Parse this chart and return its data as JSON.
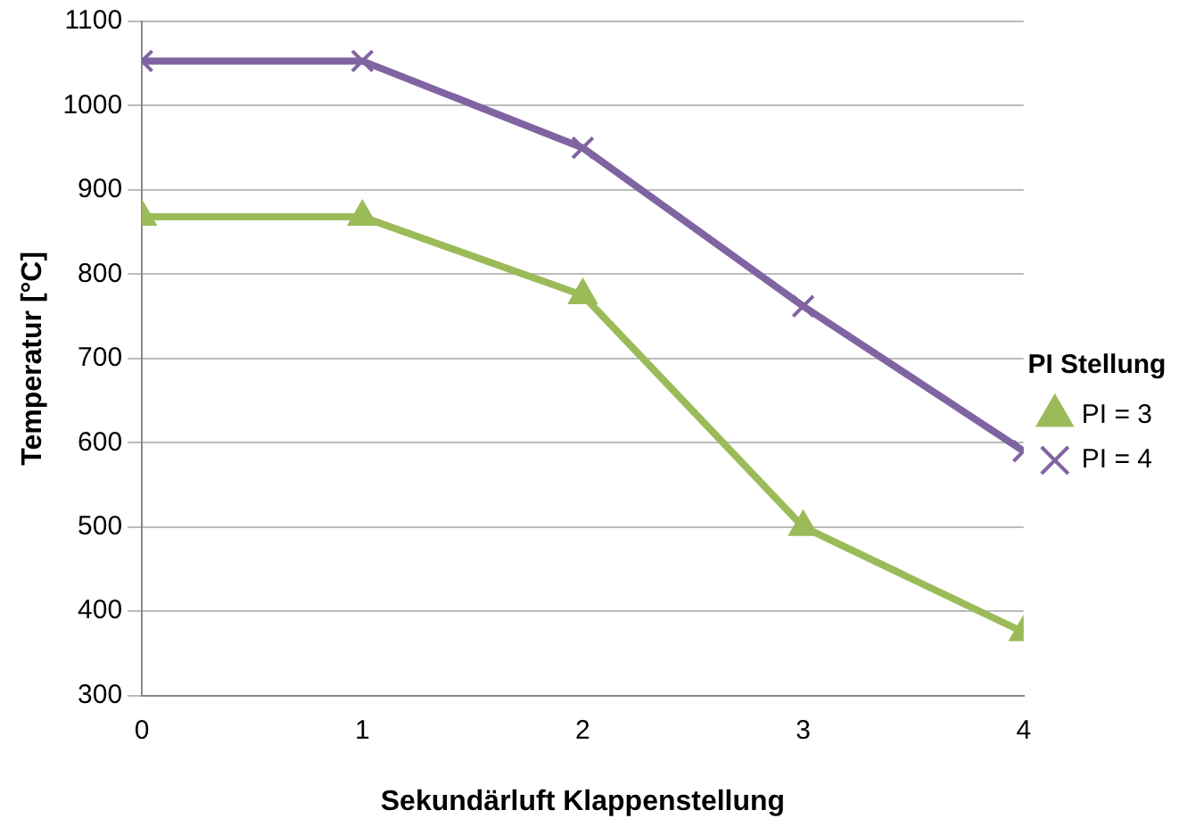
{
  "chart_data": {
    "type": "line",
    "xlabel": "Sekundärluft Klappenstellung",
    "ylabel": "Temperatur [°C]",
    "legend_title": "PI Stellung",
    "x": [
      0,
      1,
      2,
      3,
      4
    ],
    "series": [
      {
        "name": "PI = 3",
        "color": "#9bbb59",
        "values": [
          868,
          868,
          775,
          500,
          375
        ],
        "marker": "triangle"
      },
      {
        "name": "PI = 4",
        "color": "#8064a2",
        "values": [
          1053,
          1053,
          950,
          762,
          590
        ],
        "marker": "cross"
      }
    ],
    "xlim": [
      0,
      4
    ],
    "xticks": [
      0,
      1,
      2,
      3,
      4
    ],
    "ylim": [
      300,
      1100
    ],
    "yticks": [
      300,
      400,
      500,
      600,
      700,
      800,
      900,
      1000,
      1100
    ],
    "grid": "y",
    "legend": "right"
  }
}
